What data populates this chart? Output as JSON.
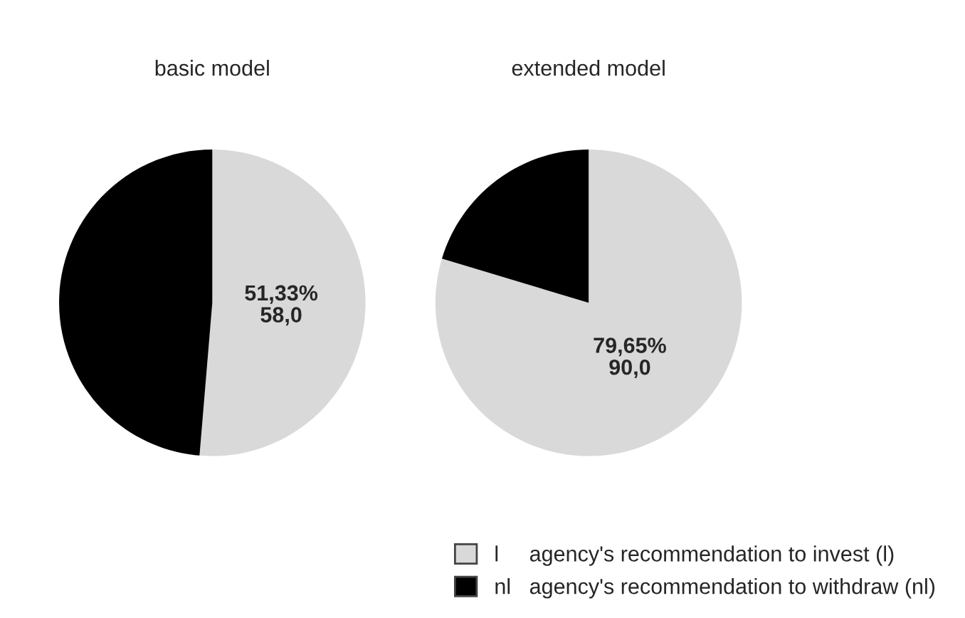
{
  "chart_data": [
    {
      "type": "pie",
      "title": "basic model",
      "categories": [
        null,
        null
      ],
      "values": [
        51.33,
        48.67
      ],
      "colors": [
        "#d9d9d9",
        "#000000"
      ],
      "value_labels": [
        "51,33%\n58,0",
        null
      ],
      "legend": false
    },
    {
      "type": "pie",
      "title": "extended model",
      "categories": [
        "l     agency's recommendation to invest (l)",
        "nl   agency's recommendation to withdraw (nl)"
      ],
      "values": [
        79.65,
        20.35
      ],
      "colors": [
        "#d9d9d9",
        "#000000"
      ],
      "value_labels": [
        "79,65%\n90,0",
        null
      ],
      "legend": "bottom right"
    }
  ]
}
